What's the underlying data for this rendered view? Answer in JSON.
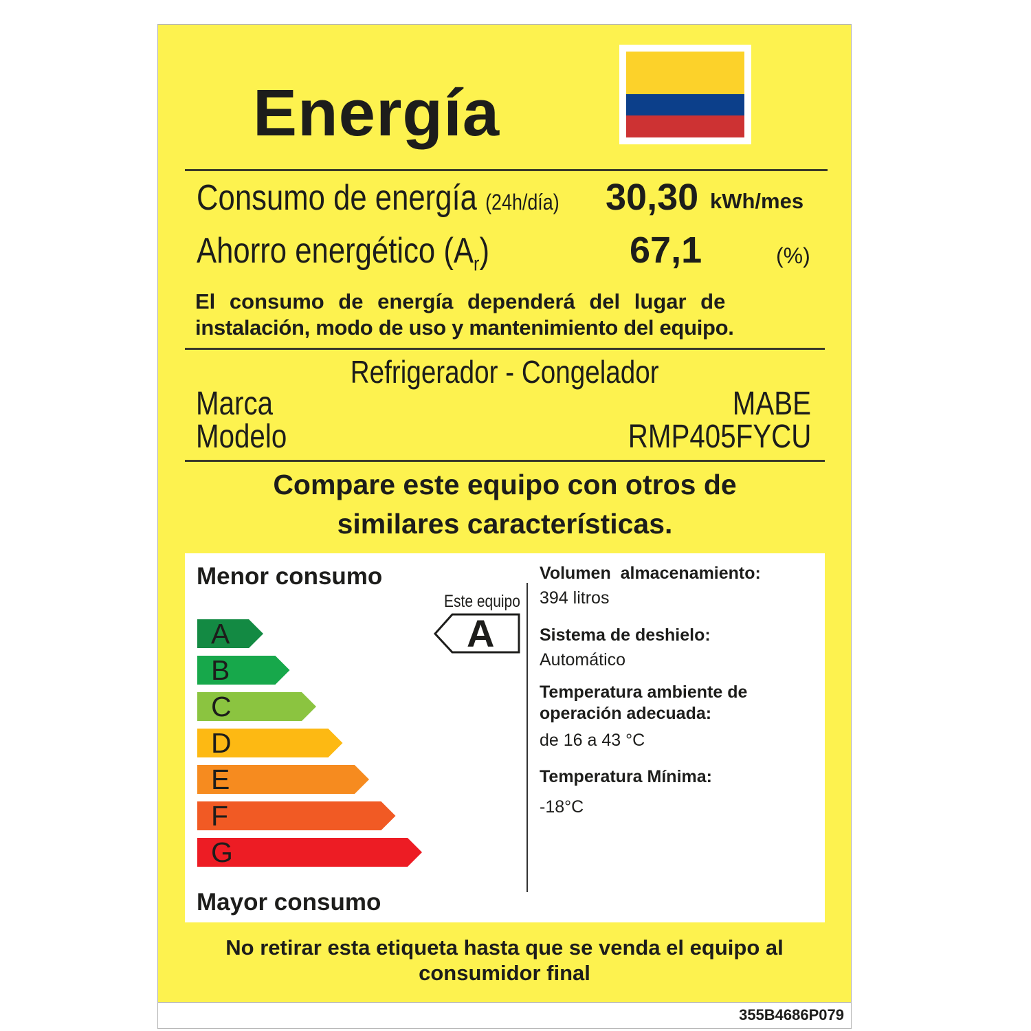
{
  "title": "Energía",
  "flag_colors": {
    "yellow": "#fcd116",
    "blue": "#003893",
    "red": "#ce1126"
  },
  "consumption": {
    "label": "Consumo de energía",
    "qualifier": "(24h/día)",
    "value": "30,30",
    "unit": "kWh/mes"
  },
  "savings": {
    "label": "Ahorro energético (",
    "sub_letter": "A",
    "subscript": "r",
    "close": ")",
    "value": "67,1",
    "unit": "(%)"
  },
  "disclaimer": [
    "El consumo de energía dependerá del lugar de",
    "instalación, modo de uso y mantenimiento del equipo."
  ],
  "product": {
    "type": "Refrigerador - Congelador",
    "brand_label": "Marca",
    "brand": "MABE",
    "model_label": "Modelo",
    "model": "RMP405FYCU"
  },
  "compare": [
    "Compare este equipo con otros de",
    "similares características."
  ],
  "scale": {
    "top_label": "Menor consumo",
    "bottom_label": "Mayor consumo",
    "classes": [
      {
        "letter": "A",
        "color": "#138a43"
      },
      {
        "letter": "B",
        "color": "#17a84b"
      },
      {
        "letter": "C",
        "color": "#8bc440"
      },
      {
        "letter": "D",
        "color": "#fdb913"
      },
      {
        "letter": "E",
        "color": "#f68b1f"
      },
      {
        "letter": "F",
        "color": "#f15a24"
      },
      {
        "letter": "G",
        "color": "#ed1c24"
      }
    ],
    "this_equipment_label": "Este equipo",
    "this_equipment_class": "A"
  },
  "specs": {
    "volume_label": "Volumen  almacenamiento:",
    "volume": "394 litros",
    "defrost_label": "Sistema de deshielo:",
    "defrost": "Automático",
    "ambient_label": [
      "Temperatura ambiente de",
      "operación adecuada:"
    ],
    "ambient": "de 16 a 43 °C",
    "min_temp_label": "Temperatura Mínima:",
    "min_temp": "-18°C"
  },
  "footer": [
    "No retirar esta etiqueta hasta que se venda el equipo al",
    "consumidor final"
  ],
  "code": "355B4686P079",
  "label_color": "#fdf24f"
}
